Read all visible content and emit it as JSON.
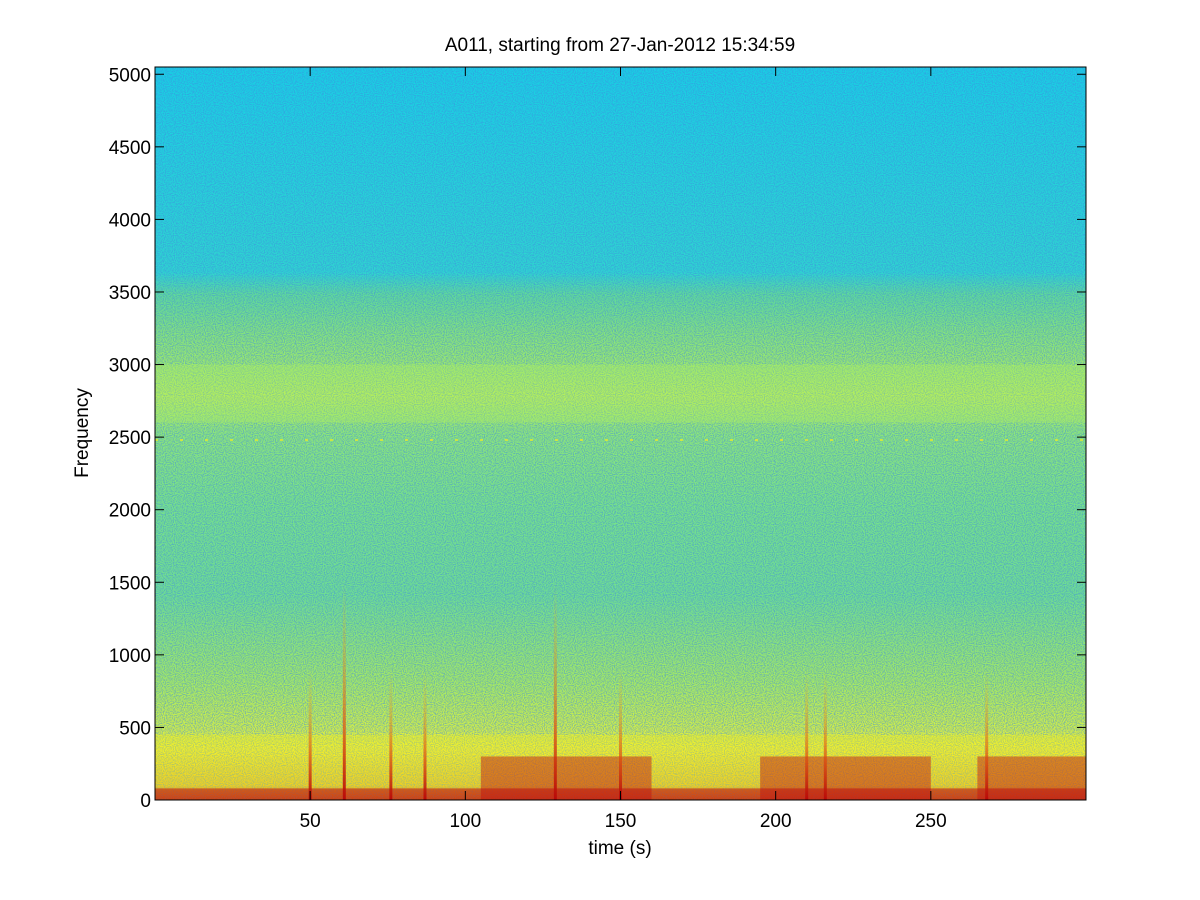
{
  "chart_data": {
    "type": "heatmap",
    "title": "A011, starting from 27-Jan-2012 15:34:59",
    "xlabel": "time (s)",
    "ylabel": "Frequency",
    "xlim": [
      0,
      300
    ],
    "ylim": [
      0,
      5050
    ],
    "x_ticks": [
      50,
      100,
      150,
      200,
      250
    ],
    "x_tick_labels": [
      "50",
      "100",
      "150",
      "200",
      "250"
    ],
    "y_ticks": [
      0,
      500,
      1000,
      1500,
      2000,
      2500,
      3000,
      3500,
      4000,
      4500,
      5000
    ],
    "y_tick_labels": [
      "0",
      "500",
      "1000",
      "1500",
      "2000",
      "2500",
      "3000",
      "3500",
      "4000",
      "4500",
      "5000"
    ],
    "colormap": "jet",
    "colors": {
      "high_freq_background": "#20d8e0",
      "mid_band": "#b0f060",
      "low_freq_band": "#f0f020",
      "peak_energy": "#c01010"
    },
    "features": {
      "high_band_hz": [
        2600,
        3000
      ],
      "tonal_line_hz": 2480,
      "low_band_hz": [
        0,
        450
      ],
      "transient_times_s": [
        50,
        61,
        76,
        87,
        129,
        150,
        210,
        216,
        268
      ],
      "energy_bursts_s": [
        [
          105,
          160
        ],
        [
          195,
          250
        ],
        [
          265,
          300
        ]
      ]
    },
    "grid": false
  }
}
